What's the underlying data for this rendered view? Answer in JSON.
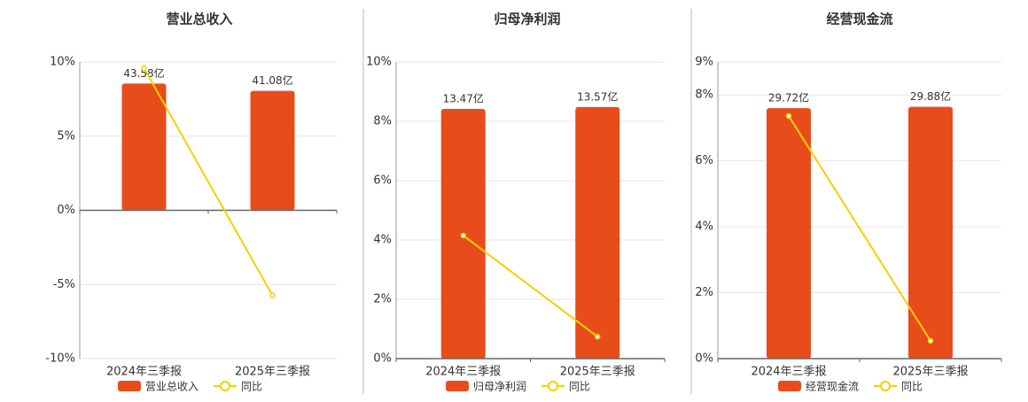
{
  "chart_data": [
    {
      "type": "bar",
      "title": "营业总收入",
      "categories": [
        "2024年三季报",
        "2025年三季报"
      ],
      "series": [
        {
          "name": "营业总收入",
          "type": "bar",
          "color": "#e84c1b",
          "axis": "y2",
          "values": [
            43.58,
            41.08
          ],
          "value_labels": [
            "43.58亿",
            "41.08亿"
          ]
        },
        {
          "name": "同比",
          "type": "line",
          "color": "#f5d000",
          "values": [
            9.58,
            -5.74
          ]
        }
      ],
      "ylim": [
        -10,
        10
      ],
      "yticks": [
        {
          "value": -10,
          "label": "-10%"
        },
        {
          "value": -5,
          "label": "-5%"
        },
        {
          "value": 0,
          "label": "0%"
        },
        {
          "value": 5,
          "label": "5%"
        },
        {
          "value": 10,
          "label": "10%"
        }
      ],
      "y2lim": [
        -51,
        51
      ],
      "grid": true
    },
    {
      "type": "bar",
      "title": "归母净利润",
      "categories": [
        "2024年三季报",
        "2025年三季报"
      ],
      "series": [
        {
          "name": "归母净利润",
          "type": "bar",
          "color": "#e84c1b",
          "axis": "y2",
          "values": [
            13.47,
            13.57
          ],
          "value_labels": [
            "13.47亿",
            "13.57亿"
          ]
        },
        {
          "name": "同比",
          "type": "line",
          "color": "#f5d000",
          "values": [
            4.15,
            0.74
          ]
        }
      ],
      "ylim": [
        0,
        10
      ],
      "yticks": [
        {
          "value": 0,
          "label": "0%"
        },
        {
          "value": 2,
          "label": "2%"
        },
        {
          "value": 4,
          "label": "4%"
        },
        {
          "value": 6,
          "label": "6%"
        },
        {
          "value": 8,
          "label": "8%"
        },
        {
          "value": 10,
          "label": "10%"
        }
      ],
      "y2lim": [
        0,
        16
      ],
      "grid": true
    },
    {
      "type": "bar",
      "title": "经营现金流",
      "categories": [
        "2024年三季报",
        "2025年三季报"
      ],
      "series": [
        {
          "name": "经营现金流",
          "type": "bar",
          "color": "#e84c1b",
          "axis": "y2",
          "values": [
            29.72,
            29.88
          ],
          "value_labels": [
            "29.72亿",
            "29.88亿"
          ]
        },
        {
          "name": "同比",
          "type": "line",
          "color": "#f5d000",
          "values": [
            7.36,
            0.54
          ]
        }
      ],
      "ylim": [
        0,
        9
      ],
      "yticks": [
        {
          "value": 0,
          "label": "0%"
        },
        {
          "value": 2,
          "label": "2%"
        },
        {
          "value": 4,
          "label": "4%"
        },
        {
          "value": 6,
          "label": "6%"
        },
        {
          "value": 8,
          "label": "8%"
        },
        {
          "value": 9,
          "label": "9%"
        }
      ],
      "y2lim": [
        0,
        35.2
      ],
      "grid": true
    }
  ]
}
